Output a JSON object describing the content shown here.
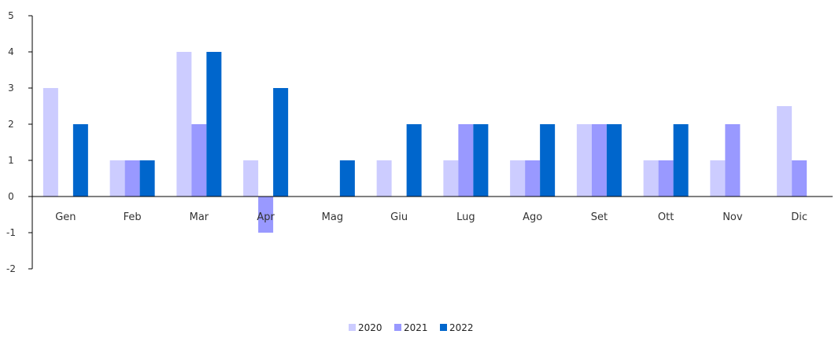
{
  "chart_data": {
    "type": "bar",
    "title": "",
    "xlabel": "",
    "ylabel": "",
    "ylim": [
      -2,
      5
    ],
    "yticks": [
      -2,
      -1,
      0,
      1,
      2,
      3,
      4,
      5
    ],
    "grid": false,
    "legend_position": "bottom",
    "categories": [
      "Gen",
      "Feb",
      "Mar",
      "Apr",
      "Mag",
      "Giu",
      "Lug",
      "Ago",
      "Set",
      "Ott",
      "Nov",
      "Dic"
    ],
    "series": [
      {
        "name": "2020",
        "color": "#ccccff",
        "values": [
          3,
          1,
          4,
          1,
          0,
          1,
          1,
          1,
          2,
          1,
          1,
          2.5
        ]
      },
      {
        "name": "2021",
        "color": "#9999ff",
        "values": [
          0,
          1,
          2,
          -1,
          0,
          0,
          2,
          1,
          2,
          1,
          2,
          1
        ]
      },
      {
        "name": "2022",
        "color": "#0066cc",
        "values": [
          2,
          1,
          4,
          3,
          1,
          2,
          2,
          2,
          2,
          2,
          0,
          0
        ]
      }
    ]
  }
}
